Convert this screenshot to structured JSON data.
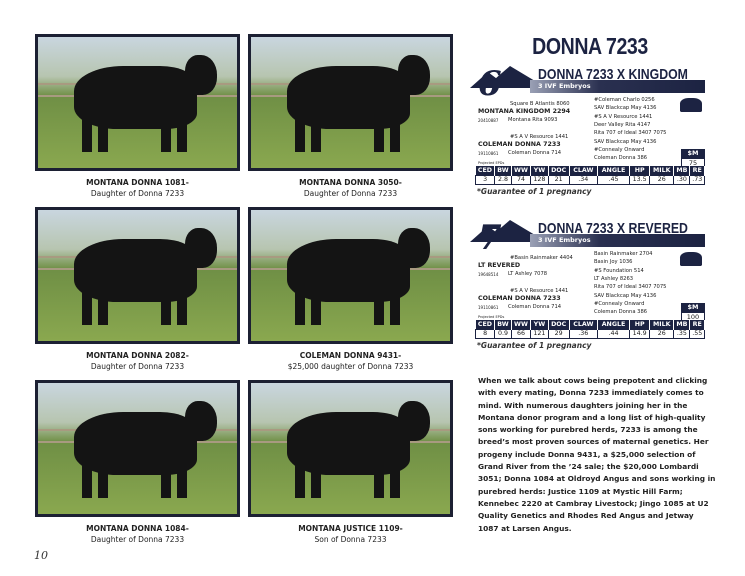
{
  "page_number": "10",
  "title": "DONNA 7233",
  "photos": [
    {
      "name": "MONTANA DONNA 1081-",
      "sub": "Daughter of Donna 7233",
      "brand": "1081"
    },
    {
      "name": "MONTANA DONNA 3050-",
      "sub": "Daughter of Donna 7233"
    },
    {
      "name": "MONTANA DONNA 2082-",
      "sub": "Daughter of Donna 7233"
    },
    {
      "name": "COLEMAN DONNA 9431-",
      "sub": "$25,000 daughter of Donna 7233"
    },
    {
      "name": "MONTANA DONNA 1084-",
      "sub": "Daughter of Donna 7233",
      "brand": "1084"
    },
    {
      "name": "MONTANA JUSTICE 1109-",
      "sub": "Son of Donna 7233"
    }
  ],
  "lots": [
    {
      "number": "6",
      "title": "DONNA 7233 X KINGDOM",
      "embryos": "3 IVF Embryos",
      "sire": {
        "name": "MONTANA KINGDOM 2294",
        "reg": "20410887",
        "sire": "Square B Atlantis 8060",
        "dam": "Montana Rita 9093"
      },
      "dam": {
        "name": "COLEMAN DONNA 7233",
        "reg": "19110861",
        "sire": "#S A V Resource 1441",
        "dam": "Coleman Donna 714"
      },
      "grand": [
        "#Coleman Charlo 0256",
        "SAV Blackcap May 4136",
        "#S A V Resource 1441",
        "Deer Valley Rita 4147",
        "Rita 707 of Ideal 3407 7075",
        "SAV Blackcap May 4136",
        "#Connealy Onward",
        "Coleman Donna 386"
      ],
      "projected_label": "Projected EPDs",
      "sm_label": "$M",
      "sm_value": "75",
      "epd_headers": [
        "CED",
        "BW",
        "WW",
        "YW",
        "DOC",
        "CLAW",
        "ANGLE",
        "HP",
        "MILK",
        "MB",
        "RE"
      ],
      "epd_values": [
        "3",
        "2.8",
        "74",
        "128",
        "21",
        ".34",
        ".45",
        "13.5",
        "26",
        ".30",
        ".73"
      ],
      "guarantee": "*Guarantee of 1 pregnancy"
    },
    {
      "number": "7",
      "title": "DONNA 7233 X REVERED",
      "embryos": "3 IVF Embryos",
      "sire": {
        "name": "LT REVERED",
        "reg": "19648514",
        "sire": "#Basin Rainmaker 4404",
        "dam": "LT Ashley 7078"
      },
      "dam": {
        "name": "COLEMAN DONNA 7233",
        "reg": "19110861",
        "sire": "#S A V Resource 1441",
        "dam": "Coleman Donna 714"
      },
      "grand": [
        "Basin Rainmaker 2704",
        "Basin Joy 1036",
        "#S Foundation 514",
        "LT Ashley 8263",
        "Rita 707 of Ideal 3407 7075",
        "SAV Blackcap May 4136",
        "#Connealy Onward",
        "Coleman Donna 386"
      ],
      "projected_label": "Projected EPDs",
      "sm_label": "$M",
      "sm_value": "100",
      "epd_headers": [
        "CED",
        "BW",
        "WW",
        "YW",
        "DOC",
        "CLAW",
        "ANGLE",
        "HP",
        "MILK",
        "MB",
        "RE"
      ],
      "epd_values": [
        "8",
        "0.9",
        "66",
        "121",
        "29",
        ".36",
        ".44",
        "14.9",
        "26",
        ".35",
        ".55"
      ],
      "guarantee": "*Guarantee of 1 pregnancy"
    }
  ],
  "description": "When we talk about cows being prepotent and clicking with every mating, Donna 7233 immediately comes to mind. With numerous daughters joining her in the Montana donor program and a long list of high-quality sons working for purebred herds, 7233 is among the breed’s most proven sources of maternal genetics. Her progeny include Donna 9431, a $25,000 selection of Grand River from the ’24 sale; the $20,000 Lombardi 3051; Donna 1084 at Oldroyd Angus and sons working in purebred herds: Justice 1109 at Mystic Hill Farm; Kennebec 2220 at Cambray Livestock; Jingo 1085 at U2 Quality Genetics and Rhodes Red Angus and Jetway 1087 at Larsen Angus."
}
